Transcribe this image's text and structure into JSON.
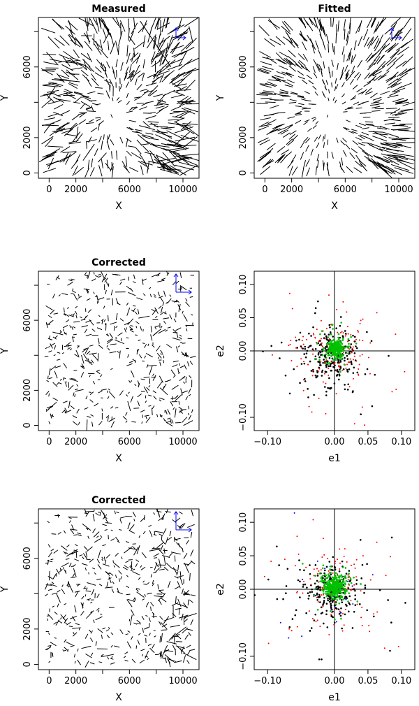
{
  "chart_data": [
    {
      "id": "measured",
      "type": "whisker",
      "title": "Measured",
      "xlabel": "X",
      "ylabel": "Y",
      "xlim": [
        -800,
        11200
      ],
      "ylim": [
        -300,
        8800
      ],
      "xticks": [
        0,
        2000,
        6000,
        10000
      ],
      "yticks": [
        0,
        2000,
        6000
      ],
      "yticks_minor": [
        4000,
        8000
      ],
      "xticks_minor": [
        4000,
        8000
      ],
      "grid": false,
      "whisker_field": "radial-tangential, longer toward corners",
      "has_orientation_key": true
    },
    {
      "id": "fitted",
      "type": "whisker",
      "title": "Fitted",
      "xlabel": "X",
      "ylabel": "Y",
      "xlim": [
        -800,
        11200
      ],
      "ylim": [
        -300,
        8800
      ],
      "xticks": [
        0,
        2000,
        6000,
        10000
      ],
      "yticks": [
        0,
        2000,
        6000
      ],
      "yticks_minor": [
        4000,
        8000
      ],
      "xticks_minor": [
        4000,
        8000
      ],
      "grid": false,
      "whisker_field": "smooth model of measured field",
      "has_orientation_key": true
    },
    {
      "id": "corrected-1",
      "type": "whisker",
      "title": "Corrected",
      "xlabel": "X",
      "ylabel": "Y",
      "xlim": [
        -800,
        11200
      ],
      "ylim": [
        -300,
        8800
      ],
      "xticks": [
        0,
        2000,
        6000,
        10000
      ],
      "yticks": [
        0,
        2000,
        6000
      ],
      "yticks_minor": [
        4000,
        8000
      ],
      "xticks_minor": [
        4000,
        8000
      ],
      "grid": false,
      "whisker_field": "random small residuals",
      "has_orientation_key": true
    },
    {
      "id": "ellipticity-1",
      "type": "scatter",
      "xlabel": "e1",
      "ylabel": "e2",
      "xlim": [
        -0.12,
        0.12
      ],
      "ylim": [
        -0.12,
        0.12
      ],
      "xticks": [
        -0.1,
        0.0,
        0.05,
        0.1
      ],
      "yticks": [
        -0.1,
        0.0,
        0.05,
        0.1
      ],
      "xtick_labels": [
        "−0.10",
        "0.00",
        "0.05",
        "0.10"
      ],
      "ytick_labels": [
        "−0.10",
        "0.00",
        "0.05",
        "0.10"
      ],
      "zero_lines": true,
      "grid": false,
      "series": [
        {
          "color": "#000000",
          "center": [
            -0.005,
            -0.008
          ],
          "spread": 0.022,
          "count": 260
        },
        {
          "color": "#ff0000",
          "center": [
            0.0,
            0.0
          ],
          "spread": 0.032,
          "count": 140
        },
        {
          "color": "#00c000",
          "center": [
            0.002,
            0.003
          ],
          "spread": 0.006,
          "count": 320
        }
      ]
    },
    {
      "id": "corrected-2",
      "type": "whisker",
      "title": "Corrected",
      "xlabel": "X",
      "ylabel": "Y",
      "xlim": [
        -800,
        11200
      ],
      "ylim": [
        -300,
        8800
      ],
      "xticks": [
        0,
        2000,
        6000,
        10000
      ],
      "yticks": [
        0,
        2000,
        6000
      ],
      "yticks_minor": [
        4000,
        8000
      ],
      "xticks_minor": [
        4000,
        8000
      ],
      "grid": false,
      "whisker_field": "random residuals with mild structure",
      "has_orientation_key": true
    },
    {
      "id": "ellipticity-2",
      "type": "scatter",
      "xlabel": "e1",
      "ylabel": "e2",
      "xlim": [
        -0.12,
        0.12
      ],
      "ylim": [
        -0.12,
        0.12
      ],
      "xticks": [
        -0.1,
        0.0,
        0.05,
        0.1
      ],
      "yticks": [
        -0.1,
        0.0,
        0.05,
        0.1
      ],
      "xtick_labels": [
        "−0.10",
        "0.00",
        "0.05",
        "0.10"
      ],
      "ytick_labels": [
        "−0.10",
        "0.00",
        "0.05",
        "0.10"
      ],
      "zero_lines": true,
      "grid": false,
      "series": [
        {
          "color": "#000000",
          "center": [
            -0.004,
            -0.006
          ],
          "spread": 0.022,
          "count": 240
        },
        {
          "color": "#ff0000",
          "center": [
            0.0,
            0.002
          ],
          "spread": 0.032,
          "count": 120
        },
        {
          "color": "#0000ff",
          "center": [
            0.0,
            0.0
          ],
          "spread": 0.025,
          "count": 30
        },
        {
          "color": "#00c000",
          "center": [
            0.0,
            0.004
          ],
          "spread": 0.008,
          "count": 360
        }
      ]
    }
  ]
}
